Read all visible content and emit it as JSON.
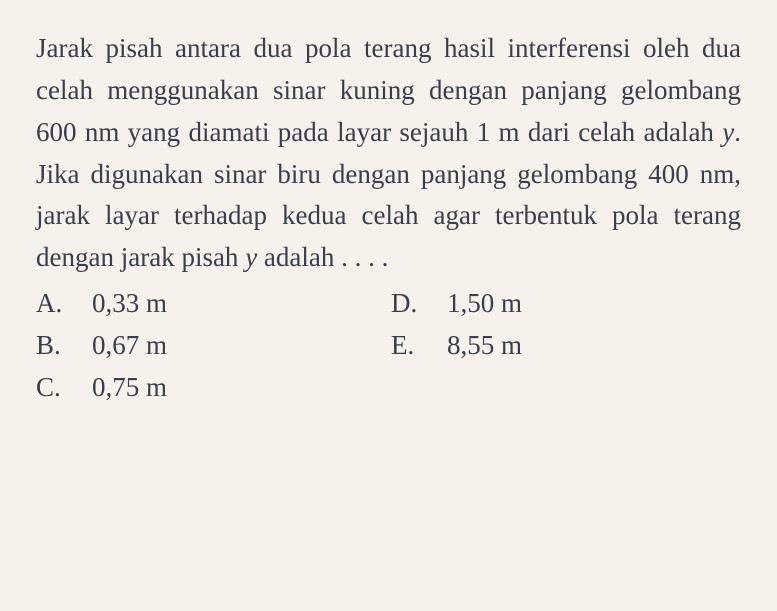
{
  "question": {
    "line1": "Jarak pisah antara dua pola terang hasil",
    "line2": "interferensi oleh dua celah menggunakan",
    "line3": "sinar kuning dengan panjang gelombang",
    "line4": "600 nm yang diamati pada layar sejauh",
    "line5_pre": "1 m dari celah adalah ",
    "line5_var": "y",
    "line5_post": ". Jika digunakan",
    "line6": "sinar biru dengan panjang gelombang",
    "line7": "400 nm, jarak layar terhadap kedua celah",
    "line8": "agar terbentuk pola terang dengan jarak",
    "line9_pre": "pisah ",
    "line9_var": "y",
    "line9_post": " adalah . . . ."
  },
  "answers": {
    "a": {
      "label": "A.",
      "value": "0,33 m"
    },
    "b": {
      "label": "B.",
      "value": "0,67 m"
    },
    "c": {
      "label": "C.",
      "value": "0,75 m"
    },
    "d": {
      "label": "D.",
      "value": "1,50 m"
    },
    "e": {
      "label": "E.",
      "value": "8,55 m"
    }
  },
  "colors": {
    "background": "#f5f2ed",
    "text": "#3a3d4a"
  },
  "typography": {
    "font_family": "Georgia, Times New Roman, serif",
    "font_size_pt": 20,
    "line_height": 1.55
  }
}
